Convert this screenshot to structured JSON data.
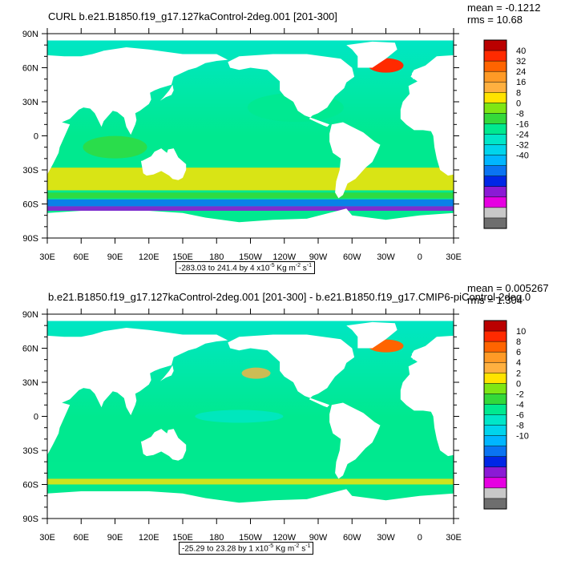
{
  "panels": [
    {
      "title": "CURL b.e21.B1850.f19_g17.127kaControl-2deg.001 [201-300]",
      "stats": {
        "mean": "mean = -0.1212",
        "rms": "rms = 10.68"
      },
      "range": {
        "text": "-283.03 to 241.4 by 4 x10",
        "exp": "-5",
        "units": " Kg m",
        "units_exp": "-2",
        "unit_s": " s",
        "unit_s_exp": "-1"
      },
      "colorbar_labels": [
        "40",
        "32",
        "24",
        "16",
        "8",
        "0",
        "-8",
        "-16",
        "-24",
        "-32",
        "-40"
      ]
    },
    {
      "title": "b.e21.B1850.f19_g17.127kaControl-2deg.001 [201-300] - b.e21.B1850.f19_g17.CMIP6-piControl-2deg.0",
      "stats": {
        "mean": "mean = 0.005267",
        "rms": "rms = 1.304"
      },
      "range": {
        "text": "-25.29 to 23.28 by 1 x10",
        "exp": "-5",
        "units": " Kg m",
        "units_exp": "-2",
        "unit_s": " s",
        "unit_s_exp": "-1"
      },
      "colorbar_labels": [
        "10",
        "8",
        "6",
        "4",
        "2",
        "0",
        "-2",
        "-4",
        "-6",
        "-8",
        "-10"
      ]
    }
  ],
  "axes": {
    "lat_labels": [
      "90N",
      "60N",
      "30N",
      "0",
      "30S",
      "60S",
      "90S"
    ],
    "lon_labels": [
      "30E",
      "60E",
      "90E",
      "120E",
      "150E",
      "180",
      "150W",
      "120W",
      "90W",
      "60W",
      "30W",
      "0",
      "30E"
    ]
  },
  "colorbar_colors": [
    "#ba0000",
    "#ff2a00",
    "#ff6400",
    "#ff9a26",
    "#ffb040",
    "#ffe300",
    "#7fe614",
    "#34d93a",
    "#00e98f",
    "#00e6c8",
    "#00d4ec",
    "#00b6ff",
    "#0a74f2",
    "#0027e6",
    "#8b1ad5",
    "#e600e2",
    "#c8c8c8",
    "#6e6e6e"
  ],
  "map_colors": {
    "land": "#ffffff",
    "ocean_top": "#00e6c8",
    "ocean_bottom": "#00e98f"
  }
}
